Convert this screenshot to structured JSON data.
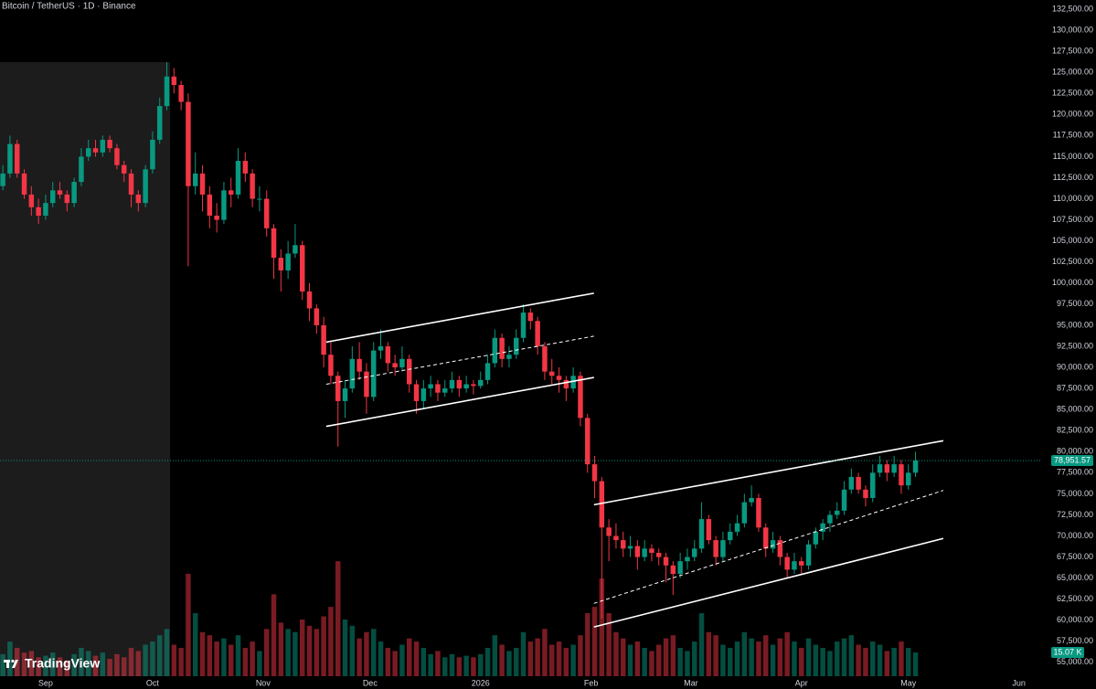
{
  "chart_data": {
    "type": "candlestick",
    "title": "Bitcoin / TetherUS · 1D · Binance",
    "brand": "TradingView",
    "up_color": "#089981",
    "down_color": "#f23645",
    "xlim": [
      -12.8,
      279.5
    ],
    "ylim": [
      53360,
      133584
    ],
    "volume_ylim": [
      0,
      116
    ],
    "xticks": [
      {
        "value": 0,
        "label": "Sep"
      },
      {
        "value": 30,
        "label": "Oct"
      },
      {
        "value": 61,
        "label": "Nov"
      },
      {
        "value": 91,
        "label": "Dec"
      },
      {
        "value": 122,
        "label": "2026"
      },
      {
        "value": 153,
        "label": "Feb"
      },
      {
        "value": 181,
        "label": "Mar"
      },
      {
        "value": 212,
        "label": "Apr"
      },
      {
        "value": 242,
        "label": "May"
      },
      {
        "value": 273,
        "label": "Jun"
      }
    ],
    "yticks": [
      {
        "value": 55000,
        "label": "55,000.00"
      },
      {
        "value": 57500,
        "label": "57,500.00"
      },
      {
        "value": 60000,
        "label": "60,000.00"
      },
      {
        "value": 62500,
        "label": "62,500.00"
      },
      {
        "value": 65000,
        "label": "65,000.00"
      },
      {
        "value": 67500,
        "label": "67,500.00"
      },
      {
        "value": 70000,
        "label": "70,000.00"
      },
      {
        "value": 72500,
        "label": "72,500.00"
      },
      {
        "value": 75000,
        "label": "75,000.00"
      },
      {
        "value": 77500,
        "label": "77,500.00"
      },
      {
        "value": 80000,
        "label": "80,000.00"
      },
      {
        "value": 82500,
        "label": "82,500.00"
      },
      {
        "value": 85000,
        "label": "85,000.00"
      },
      {
        "value": 87500,
        "label": "87,500.00"
      },
      {
        "value": 90000,
        "label": "90,000.00"
      },
      {
        "value": 92500,
        "label": "92,500.00"
      },
      {
        "value": 95000,
        "label": "95,000.00"
      },
      {
        "value": 97500,
        "label": "97,500.00"
      },
      {
        "value": 100000,
        "label": "100,000.00"
      },
      {
        "value": 102500,
        "label": "102,500.00"
      },
      {
        "value": 105000,
        "label": "105,000.00"
      },
      {
        "value": 107500,
        "label": "107,500.00"
      },
      {
        "value": 110000,
        "label": "110,000.00"
      },
      {
        "value": 112500,
        "label": "112,500.00"
      },
      {
        "value": 115000,
        "label": "115,000.00"
      },
      {
        "value": 117500,
        "label": "117,500.00"
      },
      {
        "value": 120000,
        "label": "120,000.00"
      },
      {
        "value": 122500,
        "label": "122,500.00"
      },
      {
        "value": 125000,
        "label": "125,000.00"
      },
      {
        "value": 127500,
        "label": "127,500.00"
      },
      {
        "value": 130000,
        "label": "130,000.00"
      },
      {
        "value": 132500,
        "label": "132,500.00"
      }
    ],
    "x": [
      -12,
      -10,
      -8,
      -6,
      -4,
      -2,
      0,
      2,
      4,
      6,
      8,
      10,
      12,
      14,
      16,
      18,
      20,
      22,
      24,
      26,
      28,
      30,
      32,
      34,
      36,
      38,
      40,
      42,
      44,
      46,
      48,
      50,
      52,
      54,
      56,
      58,
      60,
      62,
      64,
      66,
      68,
      70,
      72,
      74,
      76,
      78,
      80,
      82,
      84,
      86,
      88,
      90,
      92,
      94,
      96,
      98,
      100,
      102,
      104,
      106,
      108,
      110,
      112,
      114,
      116,
      118,
      120,
      122,
      124,
      126,
      128,
      130,
      132,
      134,
      136,
      138,
      140,
      142,
      144,
      146,
      148,
      150,
      152,
      154,
      156,
      158,
      160,
      162,
      164,
      166,
      168,
      170,
      172,
      174,
      176,
      178,
      180,
      182,
      184,
      186,
      188,
      190,
      192,
      194,
      196,
      198,
      200,
      202,
      204,
      206,
      208,
      210,
      212,
      214,
      216,
      218,
      220,
      222,
      224,
      226,
      228,
      230,
      232,
      234,
      236,
      238,
      240,
      242,
      244
    ],
    "ohlc": [
      [
        111500,
        114000,
        111000,
        113000
      ],
      [
        113000,
        117500,
        112500,
        116500
      ],
      [
        116500,
        117000,
        112500,
        113000
      ],
      [
        113000,
        113500,
        110000,
        110500
      ],
      [
        110500,
        111500,
        108000,
        109000
      ],
      [
        109000,
        110000,
        107000,
        108000
      ],
      [
        108000,
        110500,
        107500,
        109500
      ],
      [
        109500,
        112000,
        109000,
        111000
      ],
      [
        111000,
        112000,
        110000,
        110500
      ],
      [
        110500,
        111000,
        108500,
        109500
      ],
      [
        109500,
        112500,
        109000,
        112000
      ],
      [
        112000,
        116000,
        111500,
        115000
      ],
      [
        115000,
        117000,
        114500,
        116000
      ],
      [
        116000,
        117000,
        115000,
        115500
      ],
      [
        115500,
        117500,
        115000,
        117000
      ],
      [
        117000,
        117500,
        115500,
        116000
      ],
      [
        116000,
        116500,
        113500,
        114000
      ],
      [
        114000,
        114500,
        112000,
        113000
      ],
      [
        113000,
        113500,
        109000,
        110500
      ],
      [
        110500,
        111000,
        108500,
        109500
      ],
      [
        109500,
        114000,
        109000,
        113500
      ],
      [
        113500,
        118000,
        113000,
        117000
      ],
      [
        117000,
        122000,
        116500,
        121000
      ],
      [
        121000,
        126200,
        120500,
        124500
      ],
      [
        124500,
        125500,
        122500,
        123500
      ],
      [
        123500,
        124000,
        120500,
        121500
      ],
      [
        121500,
        122500,
        102000,
        111500
      ],
      [
        111500,
        115500,
        110500,
        113000
      ],
      [
        113000,
        114000,
        108500,
        110500
      ],
      [
        110500,
        111500,
        106500,
        108000
      ],
      [
        108000,
        109500,
        106000,
        107500
      ],
      [
        107500,
        112000,
        107000,
        111000
      ],
      [
        111000,
        112500,
        109000,
        110500
      ],
      [
        110500,
        116000,
        110000,
        114500
      ],
      [
        114500,
        115500,
        112000,
        113000
      ],
      [
        113000,
        113500,
        109000,
        110000
      ],
      [
        110000,
        111500,
        108500,
        110000
      ],
      [
        110000,
        111000,
        105500,
        106500
      ],
      [
        106500,
        107000,
        100500,
        103000
      ],
      [
        103000,
        104000,
        99000,
        101500
      ],
      [
        101500,
        105000,
        100500,
        103500
      ],
      [
        103500,
        107000,
        103000,
        104500
      ],
      [
        104500,
        105000,
        98000,
        99000
      ],
      [
        99000,
        100000,
        95500,
        97000
      ],
      [
        97000,
        97500,
        94000,
        95000
      ],
      [
        95000,
        96000,
        90000,
        91500
      ],
      [
        91500,
        93000,
        88000,
        89000
      ],
      [
        89000,
        89500,
        80600,
        86000
      ],
      [
        86000,
        88500,
        84000,
        87500
      ],
      [
        87500,
        92500,
        87000,
        91000
      ],
      [
        91000,
        93000,
        88500,
        89500
      ],
      [
        89500,
        90500,
        84500,
        86500
      ],
      [
        86500,
        93000,
        86000,
        92000
      ],
      [
        92000,
        94500,
        91000,
        92500
      ],
      [
        92500,
        93000,
        89500,
        90500
      ],
      [
        90500,
        91500,
        89000,
        90000
      ],
      [
        90000,
        92500,
        89500,
        91000
      ],
      [
        91000,
        91500,
        87000,
        88000
      ],
      [
        88000,
        88500,
        84500,
        86000
      ],
      [
        86000,
        88500,
        85000,
        87500
      ],
      [
        87500,
        89000,
        86500,
        88000
      ],
      [
        88000,
        88500,
        86000,
        87000
      ],
      [
        87000,
        88500,
        86500,
        87500
      ],
      [
        87500,
        89500,
        87000,
        88500
      ],
      [
        88500,
        89000,
        86500,
        87500
      ],
      [
        87500,
        89000,
        87000,
        88000
      ],
      [
        88000,
        88500,
        86800,
        87800
      ],
      [
        87800,
        89500,
        87500,
        88500
      ],
      [
        88500,
        91500,
        88000,
        90500
      ],
      [
        90500,
        94500,
        90000,
        93500
      ],
      [
        93500,
        94000,
        90000,
        91000
      ],
      [
        91000,
        92500,
        90000,
        91500
      ],
      [
        91500,
        94500,
        91000,
        93500
      ],
      [
        93500,
        97500,
        93000,
        96500
      ],
      [
        96500,
        97000,
        94500,
        95500
      ],
      [
        95500,
        96000,
        91500,
        92500
      ],
      [
        92500,
        93000,
        88500,
        89500
      ],
      [
        89500,
        91000,
        88000,
        89000
      ],
      [
        89000,
        90000,
        87000,
        88500
      ],
      [
        88500,
        89000,
        86000,
        87500
      ],
      [
        87500,
        90000,
        87000,
        89000
      ],
      [
        89000,
        89500,
        83000,
        84000
      ],
      [
        84000,
        84500,
        77500,
        78500
      ],
      [
        78500,
        79500,
        74500,
        76500
      ],
      [
        76500,
        77000,
        60200,
        71000
      ],
      [
        71000,
        72000,
        67000,
        70000
      ],
      [
        70000,
        71500,
        68500,
        69500
      ],
      [
        69500,
        70500,
        67500,
        68500
      ],
      [
        68500,
        70000,
        67500,
        68800
      ],
      [
        68800,
        69500,
        66000,
        67500
      ],
      [
        67500,
        69500,
        67000,
        68500
      ],
      [
        68500,
        69000,
        67000,
        68000
      ],
      [
        68000,
        68500,
        66500,
        67500
      ],
      [
        67500,
        68000,
        64500,
        66500
      ],
      [
        66500,
        67000,
        63000,
        65500
      ],
      [
        65500,
        68000,
        65000,
        67000
      ],
      [
        67000,
        68500,
        66000,
        67500
      ],
      [
        67500,
        69500,
        67000,
        68500
      ],
      [
        68500,
        74000,
        68000,
        72000
      ],
      [
        72000,
        72500,
        69000,
        69500
      ],
      [
        69500,
        70000,
        66500,
        67500
      ],
      [
        67500,
        70500,
        67000,
        69500
      ],
      [
        69500,
        71500,
        69000,
        70500
      ],
      [
        70500,
        72500,
        70000,
        71500
      ],
      [
        71500,
        75000,
        71000,
        74000
      ],
      [
        74000,
        76000,
        73500,
        74500
      ],
      [
        74500,
        75000,
        70500,
        71000
      ],
      [
        71000,
        71500,
        67500,
        68500
      ],
      [
        68500,
        70500,
        68000,
        69500
      ],
      [
        69500,
        70000,
        66500,
        67500
      ],
      [
        67500,
        68000,
        65000,
        66000
      ],
      [
        66000,
        68000,
        65500,
        67000
      ],
      [
        67000,
        67500,
        65500,
        66500
      ],
      [
        66500,
        69500,
        66000,
        69000
      ],
      [
        69000,
        71000,
        68500,
        70500
      ],
      [
        70500,
        72000,
        69500,
        71500
      ],
      [
        71500,
        73000,
        70500,
        72500
      ],
      [
        72500,
        74000,
        72000,
        73000
      ],
      [
        73000,
        76500,
        72500,
        75500
      ],
      [
        75500,
        78000,
        75000,
        77000
      ],
      [
        77000,
        77500,
        75000,
        75500
      ],
      [
        75500,
        76000,
        73500,
        74500
      ],
      [
        74500,
        78500,
        74000,
        77500
      ],
      [
        77500,
        79500,
        77000,
        78500
      ],
      [
        78500,
        79000,
        76500,
        77500
      ],
      [
        77500,
        79500,
        77000,
        78500
      ],
      [
        78500,
        79000,
        75000,
        76000
      ],
      [
        76000,
        78500,
        75500,
        77500
      ],
      [
        77500,
        80000,
        77000,
        78951.57
      ]
    ],
    "volume": [
      14,
      22,
      18,
      15,
      16,
      12,
      13,
      15,
      12,
      10,
      14,
      18,
      16,
      13,
      15,
      11,
      14,
      12,
      18,
      16,
      20,
      22,
      26,
      30,
      20,
      18,
      65,
      40,
      28,
      26,
      22,
      24,
      20,
      26,
      18,
      22,
      16,
      30,
      52,
      34,
      30,
      28,
      36,
      32,
      30,
      38,
      44,
      73,
      36,
      32,
      24,
      28,
      30,
      22,
      18,
      16,
      20,
      24,
      22,
      18,
      14,
      16,
      12,
      14,
      12,
      13,
      12,
      14,
      18,
      26,
      20,
      16,
      18,
      28,
      22,
      24,
      30,
      20,
      22,
      18,
      20,
      26,
      40,
      44,
      62,
      40,
      28,
      24,
      20,
      22,
      18,
      16,
      20,
      24,
      26,
      18,
      16,
      22,
      40,
      28,
      26,
      20,
      18,
      22,
      28,
      24,
      22,
      26,
      20,
      24,
      28,
      22,
      18,
      24,
      20,
      18,
      16,
      22,
      24,
      26,
      20,
      18,
      22,
      20,
      16,
      18,
      22,
      18,
      15.07
    ],
    "volume_last_label": "15.07 K",
    "last_price": {
      "value": 78951.57,
      "label": "78,951.57"
    },
    "trendlines": [
      {
        "style": "solid",
        "x": [
          78.7,
          153.8
        ],
        "y": [
          93000,
          98800
        ]
      },
      {
        "style": "dashed",
        "x": [
          78.7,
          153.8
        ],
        "y": [
          88000,
          93700
        ]
      },
      {
        "style": "solid",
        "x": [
          78.7,
          153.8
        ],
        "y": [
          83000,
          88800
        ]
      },
      {
        "style": "solid",
        "x": [
          153.8,
          251.8
        ],
        "y": [
          73700,
          81300
        ]
      },
      {
        "style": "dashed",
        "x": [
          153.8,
          251.8
        ],
        "y": [
          62000,
          75400
        ]
      },
      {
        "style": "solid",
        "x": [
          153.8,
          251.8
        ],
        "y": [
          59200,
          69700
        ]
      }
    ]
  }
}
